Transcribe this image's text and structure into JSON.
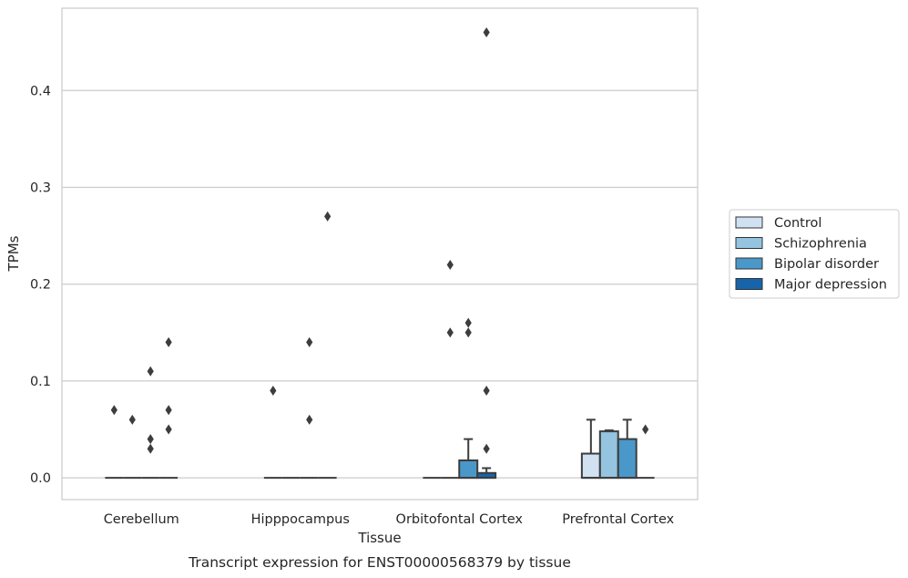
{
  "chart_data": {
    "type": "box",
    "caption": "Transcript expression for ENST00000568379 by tissue",
    "xlabel": "Tissue",
    "ylabel": "TPMs",
    "ylim": [
      -0.0225,
      0.485
    ],
    "yticks": [
      0.0,
      0.1,
      0.2,
      0.3,
      0.4
    ],
    "ytick_labels": [
      "0.0",
      "0.1",
      "0.2",
      "0.3",
      "0.4"
    ],
    "categories": [
      "Cerebellum",
      "Hipppocampus",
      "Orbitofontal Cortex",
      "Prefrontal Cortex"
    ],
    "grid": "horizontal",
    "legend_position": "right",
    "series": [
      {
        "name": "Control",
        "color": "#d0e1f2",
        "boxes": [
          {
            "q1": 0,
            "median": 0,
            "q3": 0,
            "whislo": 0,
            "whishi": 0,
            "fliers": [
              0.07
            ]
          },
          {
            "q1": 0,
            "median": 0,
            "q3": 0,
            "whislo": 0,
            "whishi": 0,
            "fliers": [
              0.09
            ]
          },
          {
            "q1": 0,
            "median": 0,
            "q3": 0,
            "whislo": 0,
            "whishi": 0,
            "fliers": []
          },
          {
            "q1": 0,
            "median": 0,
            "q3": 0.025,
            "whislo": 0,
            "whishi": 0.06,
            "fliers": []
          }
        ]
      },
      {
        "name": "Schizophrenia",
        "color": "#94c4df",
        "boxes": [
          {
            "q1": 0,
            "median": 0,
            "q3": 0,
            "whislo": 0,
            "whishi": 0,
            "fliers": [
              0.06
            ]
          },
          {
            "q1": 0,
            "median": 0,
            "q3": 0,
            "whislo": 0,
            "whishi": 0,
            "fliers": []
          },
          {
            "q1": 0,
            "median": 0,
            "q3": 0,
            "whislo": 0,
            "whishi": 0,
            "fliers": [
              0.22,
              0.15
            ]
          },
          {
            "q1": 0,
            "median": 0,
            "q3": 0.048,
            "whislo": 0,
            "whishi": 0.049,
            "fliers": []
          }
        ]
      },
      {
        "name": "Bipolar disorder",
        "color": "#4a98c9",
        "boxes": [
          {
            "q1": 0,
            "median": 0,
            "q3": 0,
            "whislo": 0,
            "whishi": 0,
            "fliers": [
              0.11,
              0.04,
              0.03
            ]
          },
          {
            "q1": 0,
            "median": 0,
            "q3": 0,
            "whislo": 0,
            "whishi": 0,
            "fliers": [
              0.14,
              0.06
            ]
          },
          {
            "q1": 0,
            "median": 0,
            "q3": 0.018,
            "whislo": 0,
            "whishi": 0.04,
            "fliers": [
              0.16,
              0.15
            ]
          },
          {
            "q1": 0,
            "median": 0,
            "q3": 0.04,
            "whislo": 0,
            "whishi": 0.06,
            "fliers": []
          }
        ]
      },
      {
        "name": "Major depression",
        "color": "#1764ab",
        "boxes": [
          {
            "q1": 0,
            "median": 0,
            "q3": 0,
            "whislo": 0,
            "whishi": 0,
            "fliers": [
              0.14,
              0.07,
              0.05
            ]
          },
          {
            "q1": 0,
            "median": 0,
            "q3": 0,
            "whislo": 0,
            "whishi": 0,
            "fliers": [
              0.27
            ]
          },
          {
            "q1": 0,
            "median": 0,
            "q3": 0.005,
            "whislo": 0,
            "whishi": 0.01,
            "fliers": [
              0.46,
              0.09,
              0.03
            ]
          },
          {
            "q1": 0,
            "median": 0,
            "q3": 0,
            "whislo": 0,
            "whishi": 0,
            "fliers": [
              0.05
            ]
          }
        ]
      }
    ]
  }
}
